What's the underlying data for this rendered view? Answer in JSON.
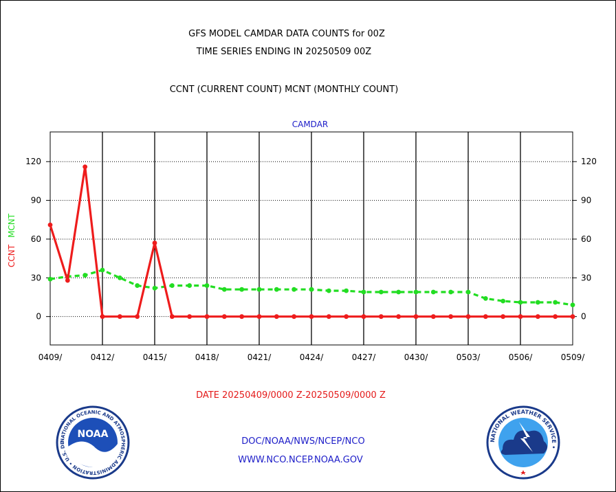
{
  "header": {
    "title_line1": "GFS MODEL CAMDAR DATA COUNTS for 00Z",
    "title_line2": "TIME SERIES ENDING IN 20250509 00Z",
    "subtitle": "CCNT (CURRENT COUNT) MCNT (MONTHLY COUNT)",
    "panel_label": "CAMDAR"
  },
  "footer": {
    "date_range": "DATE 20250409/0000 Z-20250509/0000 Z",
    "org_path": "DOC/NOAA/NWS/NCEP/NCO",
    "website": "WWW.NCO.NCEP.NOAA.GOV"
  },
  "logos": {
    "noaa_text": "NOAA",
    "noaa_ring_text": "NATIONAL OCEANIC AND ATMOSPHERIC ADMINISTRATION • U.S. DEPARTMENT OF COMMERCE •",
    "nws_ring_text": "NATIONAL WEATHER SERVICE •"
  },
  "colors": {
    "ccnt": "#ee1c1c",
    "mcnt": "#22dd22",
    "grid": "#000000",
    "blue_text": "#1c1cc8"
  },
  "chart_data": {
    "type": "line",
    "title": "GFS MODEL CAMDAR DATA COUNTS for 00Z",
    "x": [
      "0409",
      "0410",
      "0411",
      "0412",
      "0413",
      "0414",
      "0415",
      "0416",
      "0417",
      "0418",
      "0419",
      "0420",
      "0421",
      "0422",
      "0423",
      "0424",
      "0425",
      "0426",
      "0427",
      "0428",
      "0429",
      "0430",
      "0501",
      "0502",
      "0503",
      "0504",
      "0505",
      "0506",
      "0507",
      "0508",
      "0509"
    ],
    "x_tick_labels": [
      "0409/",
      "0412/",
      "0415/",
      "0418/",
      "0421/",
      "0424/",
      "0427/",
      "0430/",
      "0503/",
      "0506/",
      "0509/"
    ],
    "ylabel_left_parts": [
      "CCNT",
      "MCNT"
    ],
    "ylim": [
      -22,
      143
    ],
    "y_ticks": [
      0,
      30,
      60,
      90,
      120
    ],
    "grid": true,
    "series": [
      {
        "name": "CCNT",
        "style": "solid",
        "color": "#ee1c1c",
        "values": [
          71,
          28,
          116,
          0,
          0,
          0,
          57,
          0,
          0,
          0,
          0,
          0,
          0,
          0,
          0,
          0,
          0,
          0,
          0,
          0,
          0,
          0,
          0,
          0,
          0,
          0,
          0,
          0,
          0,
          0,
          0
        ]
      },
      {
        "name": "MCNT",
        "style": "dashed",
        "color": "#22dd22",
        "values": [
          29,
          31,
          32,
          36,
          30,
          24,
          22,
          24,
          24,
          24,
          21,
          21,
          21,
          21,
          21,
          21,
          20,
          20,
          19,
          19,
          19,
          19,
          19,
          19,
          19,
          14,
          12,
          11,
          11,
          11,
          9
        ]
      }
    ]
  }
}
